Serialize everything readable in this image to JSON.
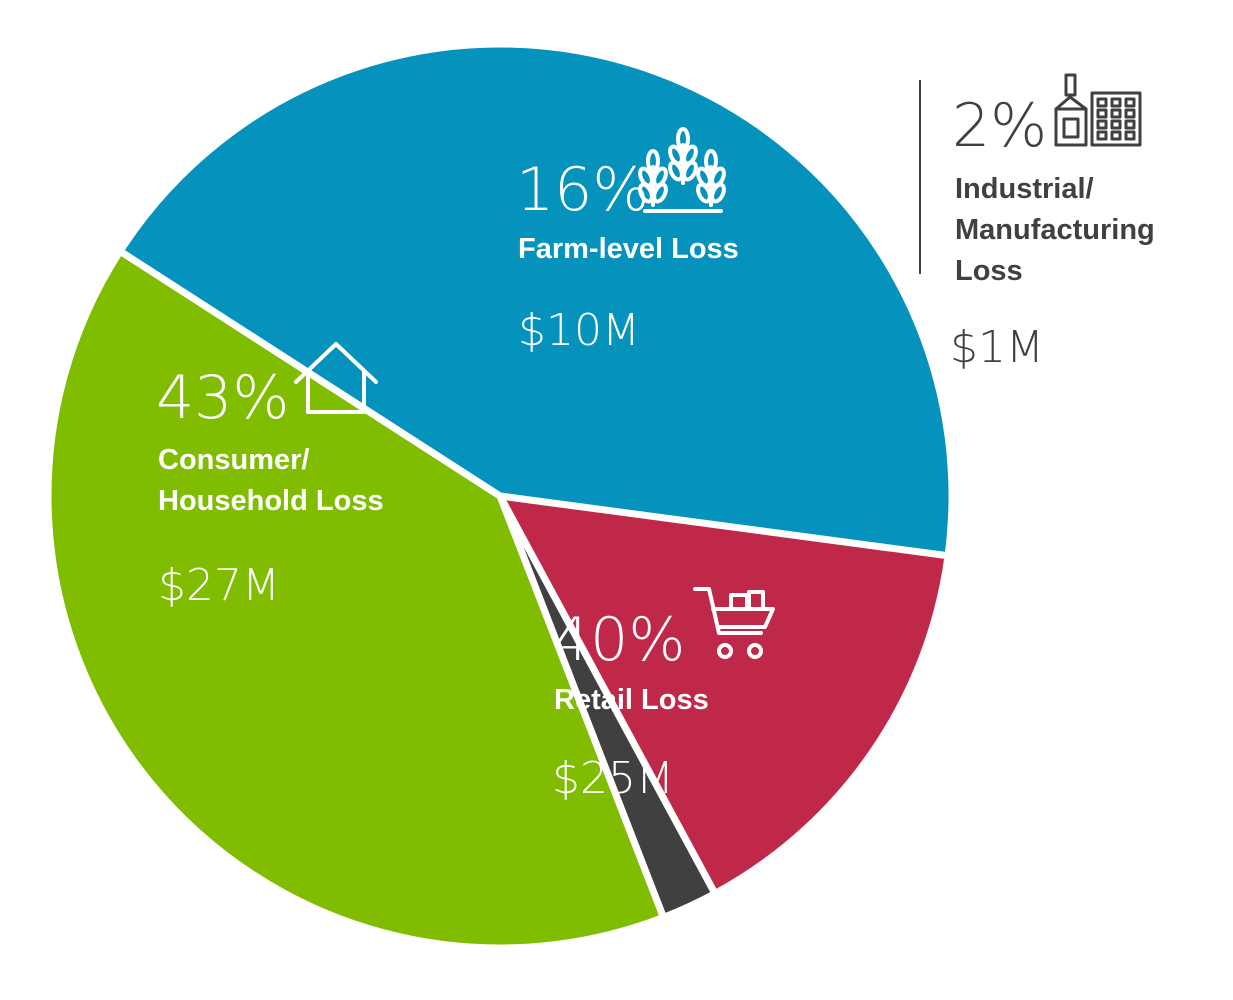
{
  "chart_data": {
    "type": "pie",
    "start_angle_deg": 94,
    "slices": [
      {
        "key": "farm",
        "percent": "16%",
        "value_pct": 16,
        "label_lines": [
          "Farm-level Loss"
        ],
        "amount": "$10M",
        "amount_value": 10,
        "color": "#c0284a",
        "icon": "wheat-icon"
      },
      {
        "key": "industrial",
        "percent": "2%",
        "value_pct": 2,
        "label_lines": [
          "Industrial/",
          "Manufacturing",
          "Loss"
        ],
        "amount": "$1M",
        "amount_value": 1,
        "color": "#404040",
        "icon": "factory-icon"
      },
      {
        "key": "retail",
        "percent": "40%",
        "value_pct": 40,
        "label_lines": [
          "Retail Loss"
        ],
        "amount": "$25M",
        "amount_value": 25,
        "color": "#80bc00",
        "icon": "shopping-cart-icon"
      },
      {
        "key": "consumer",
        "percent": "43%",
        "value_pct": 43,
        "label_lines": [
          "Consumer/",
          "Household Loss"
        ],
        "amount": "$27M",
        "amount_value": 27,
        "color": "#0593bd",
        "icon": "house-icon"
      }
    ],
    "label_colors": {
      "inside": "#ffffff",
      "outside": "#404040"
    }
  }
}
